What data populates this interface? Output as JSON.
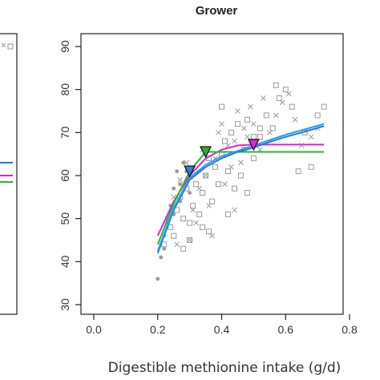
{
  "chart_data": {
    "type": "scatter",
    "title": "Grower",
    "xlabel": "Digestible methionine intake (g/d)",
    "ylabel": "",
    "xlim": [
      0.0,
      0.8
    ],
    "ylim": [
      30,
      90
    ],
    "xticks": [
      "0.0",
      "0.2",
      "0.4",
      "0.6",
      "0.8"
    ],
    "yticks": [
      "30",
      "40",
      "50",
      "60",
      "70",
      "80",
      "90"
    ],
    "grid": false,
    "series": [
      {
        "marker": "square",
        "color": "#9a9a9a",
        "points": [
          [
            0.22,
            44
          ],
          [
            0.24,
            48
          ],
          [
            0.25,
            46
          ],
          [
            0.26,
            52
          ],
          [
            0.27,
            55
          ],
          [
            0.28,
            50
          ],
          [
            0.29,
            57
          ],
          [
            0.3,
            49
          ],
          [
            0.31,
            53
          ],
          [
            0.32,
            58
          ],
          [
            0.33,
            51
          ],
          [
            0.34,
            56
          ],
          [
            0.35,
            60
          ],
          [
            0.36,
            47
          ],
          [
            0.37,
            54
          ],
          [
            0.38,
            62
          ],
          [
            0.39,
            58
          ],
          [
            0.4,
            65
          ],
          [
            0.41,
            68
          ],
          [
            0.42,
            61
          ],
          [
            0.43,
            70
          ],
          [
            0.44,
            57
          ],
          [
            0.45,
            72
          ],
          [
            0.46,
            60
          ],
          [
            0.47,
            66
          ],
          [
            0.48,
            73
          ],
          [
            0.5,
            64
          ],
          [
            0.52,
            69
          ],
          [
            0.54,
            74
          ],
          [
            0.56,
            71
          ],
          [
            0.58,
            78
          ],
          [
            0.6,
            80
          ],
          [
            0.62,
            76
          ],
          [
            0.64,
            61
          ],
          [
            0.66,
            70
          ],
          [
            0.68,
            62
          ],
          [
            0.7,
            74
          ],
          [
            0.72,
            76
          ],
          [
            0.4,
            76
          ],
          [
            0.36,
            64
          ],
          [
            0.48,
            56
          ],
          [
            0.3,
            45
          ],
          [
            0.28,
            43
          ],
          [
            0.34,
            48
          ],
          [
            0.42,
            51
          ],
          [
            0.52,
            71
          ],
          [
            0.57,
            81
          ],
          [
            0.5,
            69
          ]
        ]
      },
      {
        "marker": "x",
        "color": "#9a9a9a",
        "points": [
          [
            0.23,
            50
          ],
          [
            0.25,
            55
          ],
          [
            0.27,
            59
          ],
          [
            0.29,
            63
          ],
          [
            0.3,
            45
          ],
          [
            0.31,
            52
          ],
          [
            0.33,
            57
          ],
          [
            0.34,
            66
          ],
          [
            0.35,
            60
          ],
          [
            0.36,
            53
          ],
          [
            0.38,
            64
          ],
          [
            0.39,
            70
          ],
          [
            0.4,
            72
          ],
          [
            0.41,
            58
          ],
          [
            0.42,
            67
          ],
          [
            0.43,
            62
          ],
          [
            0.44,
            68
          ],
          [
            0.45,
            75
          ],
          [
            0.46,
            63
          ],
          [
            0.47,
            71
          ],
          [
            0.48,
            69
          ],
          [
            0.49,
            76
          ],
          [
            0.5,
            72
          ],
          [
            0.52,
            66
          ],
          [
            0.53,
            78
          ],
          [
            0.55,
            70
          ],
          [
            0.57,
            74
          ],
          [
            0.59,
            77
          ],
          [
            0.61,
            79
          ],
          [
            0.63,
            73
          ],
          [
            0.65,
            67
          ],
          [
            0.68,
            69
          ],
          [
            0.7,
            71
          ],
          [
            0.37,
            46
          ],
          [
            0.32,
            49
          ],
          [
            0.44,
            52
          ],
          [
            0.26,
            44
          ]
        ]
      },
      {
        "marker": "dot",
        "color": "#9a9a9a",
        "points": [
          [
            0.2,
            36
          ],
          [
            0.21,
            41
          ],
          [
            0.22,
            46
          ],
          [
            0.23,
            49
          ],
          [
            0.24,
            53
          ],
          [
            0.25,
            57
          ],
          [
            0.26,
            61
          ],
          [
            0.27,
            58
          ],
          [
            0.28,
            63
          ],
          [
            0.29,
            61
          ],
          [
            0.3,
            56
          ],
          [
            0.25,
            51
          ],
          [
            0.22,
            43
          ],
          [
            0.27,
            54
          ]
        ]
      }
    ],
    "lines": [
      {
        "color": "#e020e0",
        "points": [
          [
            0.2,
            46
          ],
          [
            0.25,
            54
          ],
          [
            0.3,
            60
          ],
          [
            0.35,
            64
          ],
          [
            0.4,
            66
          ],
          [
            0.45,
            67
          ],
          [
            0.5,
            67.2
          ],
          [
            0.72,
            67.2
          ]
        ]
      },
      {
        "color": "#22bb22",
        "points": [
          [
            0.2,
            44
          ],
          [
            0.25,
            53.5
          ],
          [
            0.3,
            61
          ],
          [
            0.35,
            65.5
          ],
          [
            0.72,
            65.5
          ]
        ]
      },
      {
        "color": "#1e7ad8",
        "points": [
          [
            0.2,
            42
          ],
          [
            0.25,
            52
          ],
          [
            0.3,
            59
          ],
          [
            0.35,
            62
          ],
          [
            0.4,
            64
          ],
          [
            0.45,
            65.5
          ],
          [
            0.5,
            66.5
          ],
          [
            0.55,
            67.8
          ],
          [
            0.6,
            69
          ],
          [
            0.65,
            70
          ],
          [
            0.72,
            71.5
          ]
        ]
      },
      {
        "color": "#2a9ef0",
        "points": [
          [
            0.2,
            42.5
          ],
          [
            0.25,
            52.5
          ],
          [
            0.3,
            59.5
          ],
          [
            0.35,
            62.5
          ],
          [
            0.4,
            64.5
          ],
          [
            0.5,
            67
          ],
          [
            0.6,
            69.5
          ],
          [
            0.72,
            72
          ]
        ]
      }
    ],
    "breakpoints": [
      {
        "x": 0.3,
        "y": 61,
        "color": "#2f7fd0"
      },
      {
        "x": 0.35,
        "y": 65.5,
        "color": "#33aa33"
      },
      {
        "x": 0.5,
        "y": 67.2,
        "color": "#e020e0"
      }
    ],
    "left_panel_fragment": {
      "lines": [
        {
          "color": "#1e7ad8",
          "y": 63
        },
        {
          "color": "#e020e0",
          "y": 60
        },
        {
          "color": "#22bb22",
          "y": 58.5
        }
      ],
      "points": [
        [
          0,
          83
        ],
        [
          0,
          80
        ]
      ]
    }
  }
}
